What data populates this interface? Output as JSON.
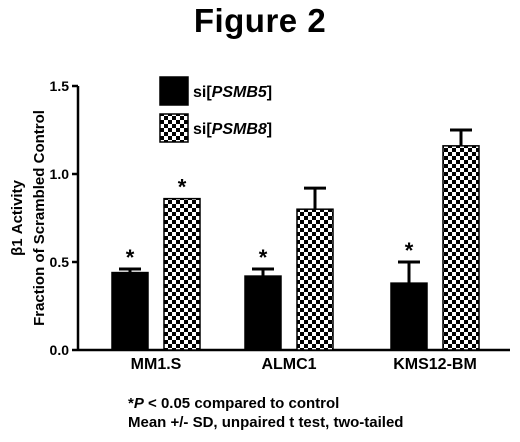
{
  "figure_title": "Figure 2",
  "chart_data": {
    "type": "bar",
    "ylabel_line1": "β1 Activity",
    "ylabel_line2": "Fraction of Scrambled Control",
    "xlabel": "",
    "ylim": [
      0,
      1.5
    ],
    "yticks": [
      "0.0",
      "0.5",
      "1.0",
      "1.5"
    ],
    "ytick_values": [
      0,
      0.5,
      1.0,
      1.5
    ],
    "categories": [
      "MM1.S",
      "ALMC1",
      "KMS12-BM"
    ],
    "series": [
      {
        "name_prefix": "si[",
        "name_gene": "PSMB5",
        "name_suffix": "]",
        "style": "solid-black",
        "values": [
          0.44,
          0.42,
          0.38
        ],
        "errors": [
          0.02,
          0.04,
          0.12
        ],
        "significance": [
          "*",
          "*",
          "*"
        ]
      },
      {
        "name_prefix": "si[",
        "name_gene": "PSMB8",
        "name_suffix": "]",
        "style": "checkered",
        "values": [
          0.86,
          0.8,
          1.16
        ],
        "errors": [
          0.0,
          0.12,
          0.09
        ],
        "significance": [
          "*",
          "",
          ""
        ]
      }
    ],
    "grid": false,
    "legend_position": "top-left"
  },
  "footnote": {
    "line1_star": "*",
    "line1_p": "P",
    "line1_rest": " < 0.05 compared to control",
    "line2": "Mean +/- SD, unpaired t test, two-tailed"
  },
  "colors": {
    "bar_solid": "#000000",
    "check_dark": "#000000",
    "check_light": "#ffffff"
  }
}
